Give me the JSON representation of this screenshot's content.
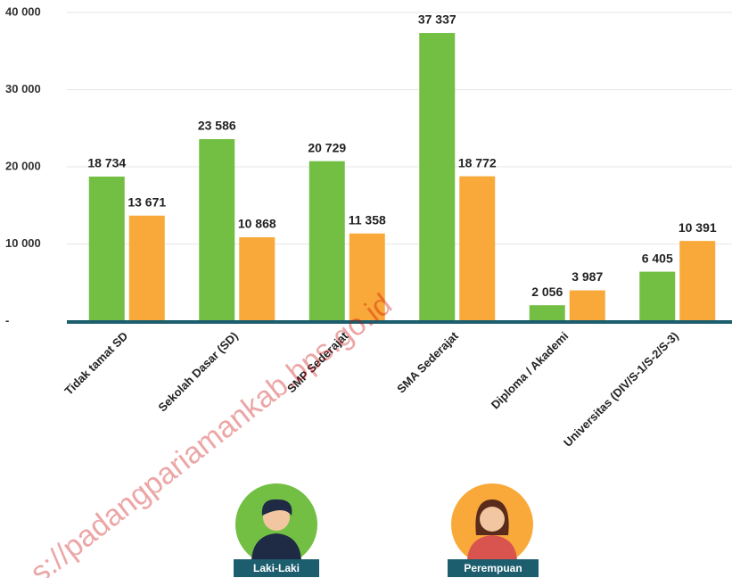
{
  "chart_data": {
    "type": "bar",
    "categories": [
      "Tidak tamat SD",
      "Sekolah Dasar (SD)",
      "SMP Sederajat",
      "SMA Sederajat",
      "Diploma / Akademi",
      "Universitas (DIV/S-1/S-2/S-3)"
    ],
    "series": [
      {
        "name": "Laki-Laki",
        "color": "#72bf44",
        "values": [
          18734,
          23586,
          20729,
          37337,
          2056,
          6405
        ],
        "value_labels": [
          "18 734",
          "23 586",
          "20 729",
          "37 337",
          "2 056",
          "6 405"
        ]
      },
      {
        "name": "Perempuan",
        "color": "#f9a93a",
        "values": [
          13671,
          10868,
          11358,
          18772,
          3987,
          10391
        ],
        "value_labels": [
          "13 671",
          "10 868",
          "11 358",
          "18 772",
          "3 987",
          "10 391"
        ]
      }
    ],
    "ylim": [
      0,
      40000
    ],
    "yticks": [
      {
        "value": 0,
        "label": "-"
      },
      {
        "value": 10000,
        "label": "10 000"
      },
      {
        "value": 20000,
        "label": "20 000"
      },
      {
        "value": 30000,
        "label": "30 000"
      },
      {
        "value": 40000,
        "label": "40 000"
      }
    ],
    "grid": true,
    "watermark": "s://padangpariamankab.bps.go.id"
  }
}
